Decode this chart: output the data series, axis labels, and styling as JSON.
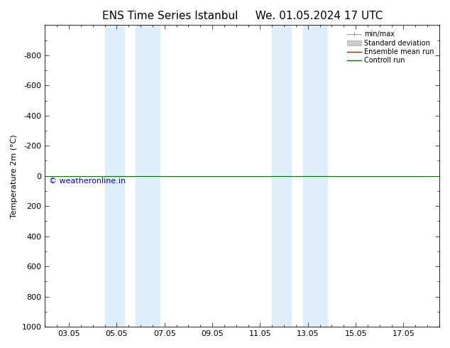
{
  "title_left": "ENS Time Series Istanbul",
  "title_right": "We. 01.05.2024 17 UTC",
  "ylabel": "Temperature 2m (°C)",
  "ylim_bottom": 1000,
  "ylim_top": -1000,
  "yticks": [
    -800,
    -600,
    -400,
    -200,
    0,
    200,
    400,
    600,
    800,
    1000
  ],
  "xtick_labels": [
    "03.05",
    "05.05",
    "07.05",
    "09.05",
    "11.05",
    "13.05",
    "15.05",
    "17.05"
  ],
  "xtick_positions": [
    2,
    4,
    6,
    8,
    10,
    12,
    14,
    16
  ],
  "xlim": [
    1.0,
    17.5
  ],
  "blue_bands": [
    [
      3.5,
      4.3
    ],
    [
      4.8,
      5.8
    ],
    [
      10.5,
      11.3
    ],
    [
      11.8,
      12.8
    ]
  ],
  "blue_band_color": "#ddeef8",
  "green_line_y": 0,
  "red_line_y": 0,
  "green_line_color": "#007000",
  "red_line_color": "#dd0000",
  "watermark_text": "© weatheronline.in",
  "watermark_color": "#0000bb",
  "watermark_fontsize": 8,
  "bg_color": "#ffffff",
  "title_fontsize": 11,
  "axis_fontsize": 8,
  "tick_fontsize": 8
}
